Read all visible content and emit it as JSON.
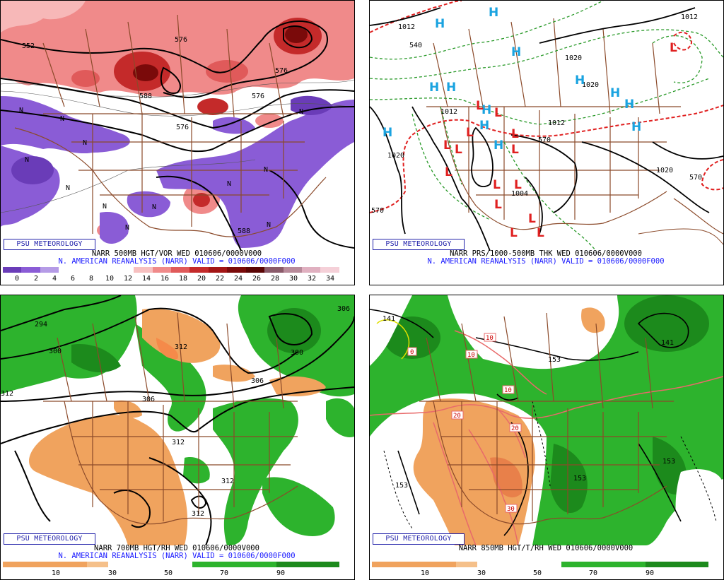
{
  "colors": {
    "vort_pos": "#f08a8a",
    "vort_pos_strong": "#b51a1a",
    "vort_neg": "#8a5cd6",
    "rh_dry": "#f0a35e",
    "rh_moist": "#2db32d",
    "rh_moist_dark": "#1c8a1c",
    "borders": "#8b4a2a",
    "high": "#1aa3e0",
    "low": "#e02020",
    "thickness": "#2a9a2a",
    "thickness_540": "#e02020",
    "text_blue": "#1a1aff"
  },
  "panels": [
    {
      "brand": "PSU METEOROLOGY",
      "title": "NARR 500MB HGT/VOR WED 010606/0000V000",
      "subtitle": "N. AMERICAN REANALYSIS (NARR) VALID = 010606/0000F000",
      "colorbar_ticks": [
        "0",
        "2",
        "4",
        "6",
        "8",
        "10",
        "12",
        "14",
        "16",
        "18",
        "20",
        "22",
        "24",
        "26",
        "28",
        "30",
        "32",
        "34"
      ],
      "contour_labels": [
        "552",
        "576",
        "576",
        "588",
        "576",
        "588",
        "576"
      ],
      "n_marks": [
        "N",
        "N",
        "N",
        "N",
        "N",
        "N",
        "N",
        "N",
        "N",
        "N",
        "N",
        "N"
      ]
    },
    {
      "brand": "PSU METEOROLOGY",
      "title": "NARR PRS/1000-500MB THK WED 010606/0000V000",
      "subtitle": "N. AMERICAN REANALYSIS (NARR) VALID = 010606/0000F000",
      "contour_labels": [
        "1012",
        "540",
        "1012",
        "1020",
        "1020",
        "1012",
        "1012",
        "1020",
        "1004",
        "1020",
        "570",
        "570",
        "570"
      ],
      "highs": [
        "H",
        "H",
        "H",
        "H",
        "H",
        "H",
        "H",
        "H",
        "H",
        "H",
        "H",
        "H",
        "H"
      ],
      "lows": [
        "L",
        "L",
        "L",
        "L",
        "L",
        "L",
        "L",
        "L",
        "L",
        "L",
        "L",
        "L",
        "L",
        "L",
        "L"
      ]
    },
    {
      "brand": "PSU METEOROLOGY",
      "title": "NARR 700MB HGT/RH WED 010606/0000V000",
      "subtitle": "N. AMERICAN REANALYSIS (NARR) VALID = 010606/0000F000",
      "colorbar_ticks": [
        "10",
        "30",
        "50",
        "70",
        "90"
      ],
      "contour_labels": [
        "294",
        "300",
        "312",
        "306",
        "300",
        "306",
        "306",
        "312",
        "312",
        "312",
        "312"
      ]
    },
    {
      "brand": "PSU METEOROLOGY",
      "title": "NARR 850MB HGT/T/RH WED 010606/0000V000",
      "colorbar_ticks": [
        "10",
        "30",
        "50",
        "70",
        "90"
      ],
      "contour_labels": [
        "141",
        "153",
        "141",
        "153",
        "153",
        "153"
      ],
      "temp_labels": [
        "0",
        "10",
        "10",
        "10",
        "20",
        "20",
        "30"
      ]
    }
  ]
}
